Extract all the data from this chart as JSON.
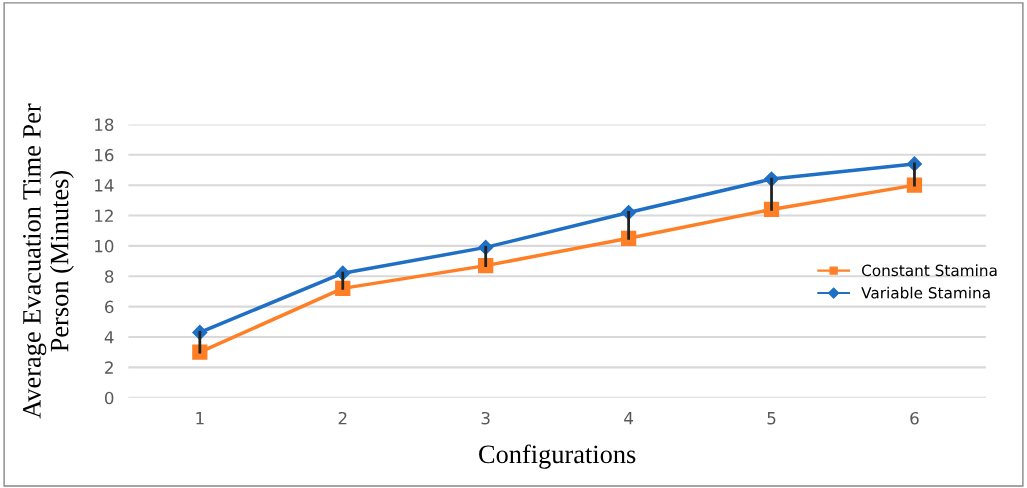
{
  "chart_data": {
    "type": "line",
    "xlabel": "Configurations",
    "ylabel": "Average Evacuation Time Per\nPerson (Minutes)",
    "categories": [
      "1",
      "2",
      "3",
      "4",
      "5",
      "6"
    ],
    "series": [
      {
        "name": "Constant Stamina",
        "color": "#ff7f27",
        "marker": "square",
        "values": [
          3.0,
          7.2,
          8.7,
          10.5,
          12.4,
          14.0
        ]
      },
      {
        "name": "Variable Stamina",
        "color": "#1f6fc5",
        "marker": "diamond",
        "values": [
          4.3,
          8.2,
          9.9,
          12.2,
          14.4,
          15.4
        ],
        "errors": [
          [
            3.0,
            4.3
          ],
          [
            7.2,
            8.2
          ],
          [
            8.7,
            9.9
          ],
          [
            10.5,
            12.2
          ],
          [
            12.4,
            14.4
          ],
          [
            14.0,
            15.4
          ]
        ]
      }
    ],
    "ylim": [
      0,
      18
    ],
    "yticks": [
      0,
      2,
      4,
      6,
      8,
      10,
      12,
      14,
      16,
      18
    ],
    "grid": "y",
    "legend": "right",
    "line_style": "solid"
  }
}
